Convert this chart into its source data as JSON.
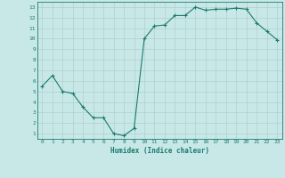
{
  "x": [
    0,
    1,
    2,
    3,
    4,
    5,
    6,
    7,
    8,
    9,
    10,
    11,
    12,
    13,
    14,
    15,
    16,
    17,
    18,
    19,
    20,
    21,
    22,
    23
  ],
  "y": [
    5.5,
    6.5,
    5.0,
    4.8,
    3.5,
    2.5,
    2.5,
    1.0,
    0.8,
    1.5,
    10.0,
    11.2,
    11.3,
    12.2,
    12.2,
    13.0,
    12.7,
    12.8,
    12.8,
    12.9,
    12.8,
    11.5,
    10.7,
    9.9
  ],
  "line_color": "#1a7a6e",
  "marker": "+",
  "bg_color": "#c8e8e8",
  "grid_color": "#b0d0d0",
  "xlabel": "Humidex (Indice chaleur)",
  "xlabel_color": "#1a7a6e",
  "tick_color": "#1a7a6e",
  "xlim": [
    -0.5,
    23.5
  ],
  "ylim": [
    0.5,
    13.5
  ],
  "yticks": [
    1,
    2,
    3,
    4,
    5,
    6,
    7,
    8,
    9,
    10,
    11,
    12,
    13
  ],
  "xticks": [
    0,
    1,
    2,
    3,
    4,
    5,
    6,
    7,
    8,
    9,
    10,
    11,
    12,
    13,
    14,
    15,
    16,
    17,
    18,
    19,
    20,
    21,
    22,
    23
  ]
}
